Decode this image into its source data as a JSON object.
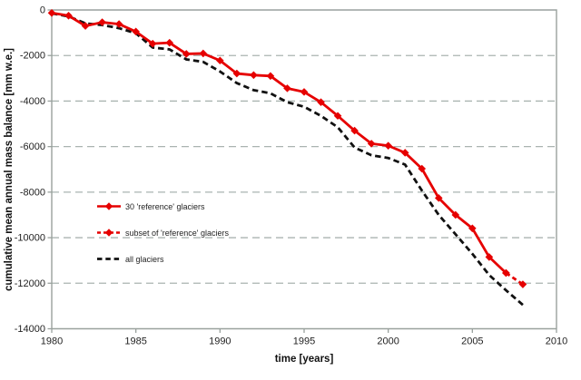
{
  "titles": {
    "x_axis": "time [years]",
    "y_axis": "cumulative mean annual mass balance [mm w.e.]"
  },
  "legend": {
    "items": [
      {
        "label": "30 'reference'  glaciers",
        "style": "solid-red-diamond"
      },
      {
        "label": "subset of 'reference'  glaciers",
        "style": "dashed-red-diamond"
      },
      {
        "label": "all glaciers",
        "style": "dashed-black"
      }
    ]
  },
  "colors": {
    "reference_red": "#e60000",
    "all_glaciers_black": "#111111",
    "gridline": "#aab4b0",
    "axis": "#99a19d",
    "text": "#1f1f1f"
  },
  "chart_data": {
    "type": "line",
    "title": "",
    "xlabel": "time [years]",
    "ylabel": "cumulative mean annual mass balance [mm w.e.]",
    "xlim": [
      1980,
      2010
    ],
    "ylim": [
      -14000,
      0
    ],
    "xticks": [
      1980,
      1985,
      1990,
      1995,
      2000,
      2005,
      2010
    ],
    "yticks": [
      0,
      -2000,
      -4000,
      -6000,
      -8000,
      -10000,
      -12000,
      -14000
    ],
    "grid": "horizontal dashed gridlines",
    "legend_position": "inside left-middle",
    "series": [
      {
        "name": "30 'reference' glaciers",
        "color_key": "reference_red",
        "line": "solid",
        "marker": "diamond",
        "x": [
          1980,
          1981,
          1982,
          1983,
          1984,
          1985,
          1986,
          1987,
          1988,
          1989,
          1990,
          1991,
          1992,
          1993,
          1994,
          1995,
          1996,
          1997,
          1998,
          1999,
          2000,
          2001,
          2002,
          2003,
          2004,
          2005,
          2006,
          2007
        ],
        "values": [
          -130,
          -250,
          -700,
          -540,
          -620,
          -950,
          -1480,
          -1440,
          -1930,
          -1910,
          -2220,
          -2790,
          -2860,
          -2900,
          -3440,
          -3600,
          -4050,
          -4650,
          -5300,
          -5870,
          -5960,
          -6270,
          -6970,
          -8260,
          -9000,
          -9590,
          -10850,
          -11550
        ]
      },
      {
        "name": "subset of 'reference' glaciers",
        "color_key": "reference_red",
        "line": "dashed",
        "marker": "diamond",
        "x": [
          2007,
          2008
        ],
        "values": [
          -11550,
          -12050
        ]
      },
      {
        "name": "all glaciers",
        "color_key": "all_glaciers_black",
        "line": "dashed",
        "marker": "none",
        "x": [
          1980,
          1981,
          1982,
          1983,
          1984,
          1985,
          1986,
          1987,
          1988,
          1989,
          1990,
          1991,
          1992,
          1993,
          1994,
          1995,
          1996,
          1997,
          1998,
          1999,
          2000,
          2001,
          2002,
          2003,
          2004,
          2005,
          2006,
          2007,
          2008
        ],
        "values": [
          -150,
          -280,
          -590,
          -660,
          -800,
          -1020,
          -1650,
          -1730,
          -2170,
          -2280,
          -2700,
          -3210,
          -3520,
          -3660,
          -4050,
          -4250,
          -4650,
          -5150,
          -6040,
          -6380,
          -6500,
          -6790,
          -7930,
          -9000,
          -9850,
          -10710,
          -11640,
          -12310,
          -12950
        ]
      }
    ]
  }
}
